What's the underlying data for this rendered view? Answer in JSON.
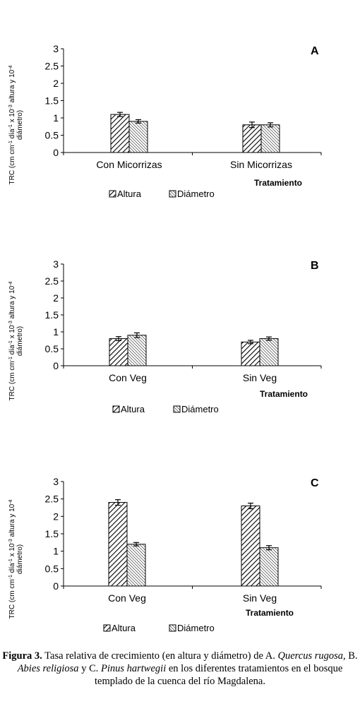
{
  "chart_data": [
    {
      "type": "bar",
      "panel": "A",
      "categories": [
        "Con Micorrizas",
        "Sin Micorrizas"
      ],
      "series": [
        {
          "name": "Altura",
          "values": [
            1.1,
            0.8
          ],
          "errors": [
            0.06,
            0.08
          ]
        },
        {
          "name": "Diámetro",
          "values": [
            0.9,
            0.8
          ],
          "errors": [
            0.05,
            0.06
          ]
        }
      ],
      "xlabel": "Tratamiento",
      "ylabel_parts": [
        "TRC (cm cm",
        "-1",
        " día",
        "-1",
        " x 10",
        "-3",
        " altura y 10",
        "-4"
      ],
      "ylabel_line2": "diámetro)",
      "ylim": [
        0,
        3
      ],
      "yticks": [
        "0",
        "0.5",
        "1",
        "1.5",
        "2",
        "2.5",
        "3"
      ],
      "legend_placement": "bottom"
    },
    {
      "type": "bar",
      "panel": "B",
      "categories": [
        "Con Veg",
        "Sin Veg"
      ],
      "series": [
        {
          "name": "Altura",
          "values": [
            0.8,
            0.7
          ],
          "errors": [
            0.06,
            0.05
          ]
        },
        {
          "name": "Diámetro",
          "values": [
            0.9,
            0.8
          ],
          "errors": [
            0.07,
            0.05
          ]
        }
      ],
      "xlabel": "Tratamiento",
      "ylabel_parts": [
        "TRC (cm cm",
        "-1",
        " día",
        "-1",
        " x 10",
        "-3",
        " altura y 10",
        "-4"
      ],
      "ylabel_line2": "diámetro)",
      "ylim": [
        0,
        3
      ],
      "yticks": [
        "0",
        "0.5",
        "1",
        "1.5",
        "2",
        "2.5",
        "3"
      ],
      "legend_placement": "bottom"
    },
    {
      "type": "bar",
      "panel": "C",
      "categories": [
        "Con Veg",
        "Sin Veg"
      ],
      "series": [
        {
          "name": "Altura",
          "values": [
            2.4,
            2.3
          ],
          "errors": [
            0.08,
            0.08
          ]
        },
        {
          "name": "Diámetro",
          "values": [
            1.2,
            1.1
          ],
          "errors": [
            0.05,
            0.06
          ]
        }
      ],
      "xlabel": "Tratamiento",
      "ylabel_parts": [
        "TRC (cm cm",
        "-1",
        " día",
        "-1",
        " x 10",
        "-3",
        " altura y 10",
        "-4"
      ],
      "ylabel_line2": "diámetro)",
      "ylim": [
        0,
        3
      ],
      "yticks": [
        "0",
        "0.5",
        "1",
        "1.5",
        "2",
        "2.5",
        "3"
      ],
      "legend_placement": "bottom"
    }
  ],
  "caption": {
    "label": "Figura 3.",
    "t1": " Tasa relativa de crecimiento (en altura y diámetro) de A. ",
    "sp1": "Quercus rugosa",
    "t2": ", B. ",
    "sp2": "Abies religiosa",
    "t3": " y C. ",
    "sp3": "Pinus hartwegii",
    "t4": " en los diferentes tratamientos en el bosque templado de la cuenca del río Magdalena."
  }
}
